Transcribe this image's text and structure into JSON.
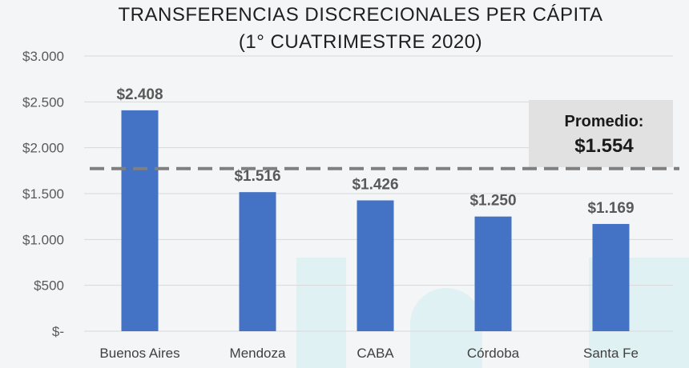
{
  "chart_data": {
    "type": "bar",
    "title_lines": [
      "TRANSFERENCIAS DISCRECIONALES PER CÁPITA",
      "(1° CUATRIMESTRE 2020)"
    ],
    "categories": [
      "Buenos Aires",
      "Mendoza",
      "CABA",
      "Córdoba",
      "Santa Fe"
    ],
    "values": [
      2408,
      1516,
      1426,
      1250,
      1169
    ],
    "value_labels": [
      "$2.408",
      "$1.516",
      "$1.426",
      "$1.250",
      "$1.169"
    ],
    "y_ticks": [
      0,
      500,
      1000,
      1500,
      2000,
      2500,
      3000
    ],
    "y_tick_labels": [
      "$-",
      "$500",
      "$1.000",
      "$1.500",
      "$2.000",
      "$2.500",
      "$3.000"
    ],
    "ylim": [
      0,
      3000
    ],
    "grid": true,
    "bar_color": "#4472c4",
    "average": {
      "value": 1554,
      "label": "Promedio:",
      "value_label": "$1.554",
      "line_style": "dashed",
      "line_color": "#7f7f7f",
      "box_color": "#e1e1e1"
    }
  }
}
